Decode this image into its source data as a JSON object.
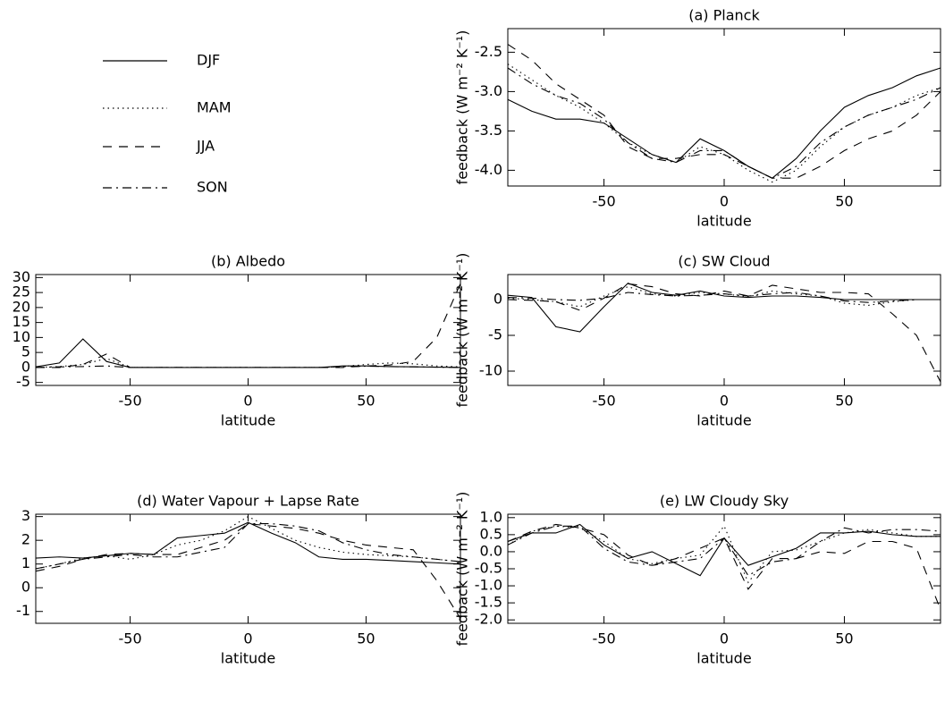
{
  "legend": [
    {
      "name": "DJF",
      "dash": "solid"
    },
    {
      "name": "MAM",
      "dash": "dotted"
    },
    {
      "name": "JJA",
      "dash": "dashed"
    },
    {
      "name": "SON",
      "dash": "dashdot"
    }
  ],
  "chart_data": [
    {
      "type": "line",
      "title": "(a) Planck",
      "xlabel": "latitude",
      "ylabel": "feedback (W m⁻² K⁻¹)",
      "xlim": [
        -90,
        90
      ],
      "xticks": [
        -50,
        0,
        50
      ],
      "ylim": [
        -4.2,
        -2.2
      ],
      "yticks": [
        -2.5,
        {
          "value": -3,
          "label": "-3.0"
        },
        -3.5,
        {
          "value": -4,
          "label": "-4.0"
        }
      ],
      "x": [
        -90,
        -80,
        -70,
        -60,
        -50,
        -40,
        -30,
        -20,
        -10,
        0,
        10,
        20,
        30,
        40,
        50,
        60,
        70,
        80,
        90
      ],
      "series": [
        {
          "name": "DJF",
          "values": [
            -3.1,
            -3.25,
            -3.35,
            -3.35,
            -3.4,
            -3.6,
            -3.8,
            -3.9,
            -3.6,
            -3.75,
            -3.95,
            -4.1,
            -3.85,
            -3.5,
            -3.2,
            -3.05,
            -2.95,
            -2.8,
            -2.7
          ]
        },
        {
          "name": "MAM",
          "values": [
            -2.65,
            -2.85,
            -3.05,
            -3.2,
            -3.4,
            -3.65,
            -3.8,
            -3.9,
            -3.7,
            -3.8,
            -4.0,
            -4.15,
            -4.0,
            -3.7,
            -3.45,
            -3.3,
            -3.2,
            -3.05,
            -2.95
          ]
        },
        {
          "name": "JJA",
          "values": [
            -2.4,
            -2.6,
            -2.9,
            -3.1,
            -3.3,
            -3.7,
            -3.85,
            -3.85,
            -3.8,
            -3.8,
            -3.95,
            -4.1,
            -4.1,
            -3.95,
            -3.75,
            -3.6,
            -3.5,
            -3.3,
            -3.0
          ]
        },
        {
          "name": "SON",
          "values": [
            -2.7,
            -2.9,
            -3.05,
            -3.15,
            -3.35,
            -3.65,
            -3.85,
            -3.9,
            -3.75,
            -3.75,
            -3.95,
            -4.1,
            -3.95,
            -3.65,
            -3.45,
            -3.3,
            -3.2,
            -3.1,
            -2.95
          ]
        }
      ]
    },
    {
      "type": "line",
      "title": "(b) Albedo",
      "xlabel": "latitude",
      "ylabel": "feedback (W m⁻² K⁻¹)",
      "xlim": [
        -90,
        90
      ],
      "xticks": [
        -50,
        0,
        50
      ],
      "ylim": [
        -6,
        31
      ],
      "yticks": [
        -5,
        0,
        5,
        10,
        15,
        20,
        25,
        30
      ],
      "x": [
        -90,
        -80,
        -70,
        -60,
        -50,
        -40,
        -30,
        -20,
        -10,
        0,
        10,
        20,
        30,
        40,
        50,
        60,
        70,
        80,
        90
      ],
      "series": [
        {
          "name": "DJF",
          "values": [
            0.2,
            1.5,
            9.5,
            2,
            0,
            0,
            0,
            0,
            0,
            0,
            0,
            0,
            0,
            0.5,
            0.5,
            0.3,
            0.2,
            0.1,
            0
          ]
        },
        {
          "name": "MAM",
          "values": [
            0,
            0.3,
            1,
            3,
            0,
            0,
            0,
            0,
            0,
            0,
            0,
            0,
            0,
            0.3,
            1,
            1.5,
            1.2,
            0.5,
            0.2
          ]
        },
        {
          "name": "JJA",
          "values": [
            0,
            0,
            1,
            4.5,
            0,
            0,
            0,
            0,
            0,
            0,
            0,
            0,
            0,
            0,
            0.5,
            0.8,
            2,
            10,
            28
          ]
        },
        {
          "name": "SON",
          "values": [
            0,
            0.2,
            0.3,
            0.5,
            0,
            0,
            0,
            0,
            0,
            0,
            0,
            0,
            0,
            0.3,
            0.4,
            0.3,
            0.2,
            0.1,
            0
          ]
        }
      ]
    },
    {
      "type": "line",
      "title": "(c) SW Cloud",
      "xlabel": "latitude",
      "ylabel": "feedback (W m⁻² K⁻¹)",
      "xlim": [
        -90,
        90
      ],
      "xticks": [
        -50,
        0,
        50
      ],
      "ylim": [
        -12,
        3.5
      ],
      "yticks": [
        -10,
        -5,
        0
      ],
      "x": [
        -90,
        -80,
        -70,
        -60,
        -50,
        -40,
        -30,
        -20,
        -10,
        0,
        10,
        20,
        30,
        40,
        50,
        60,
        70,
        80,
        90
      ],
      "series": [
        {
          "name": "DJF",
          "values": [
            0.6,
            0.3,
            -3.8,
            -4.5,
            -1,
            2.3,
            1,
            0.6,
            1.2,
            0.5,
            0.3,
            0.5,
            0.5,
            0.3,
            0,
            0,
            0,
            0,
            0
          ]
        },
        {
          "name": "MAM",
          "values": [
            0.2,
            0,
            -0.3,
            -1,
            0.5,
            1.8,
            0.8,
            0.5,
            1,
            0.8,
            0.4,
            1.2,
            0.8,
            0.5,
            -0.5,
            -0.8,
            -0.3,
            0,
            0
          ]
        },
        {
          "name": "JJA",
          "values": [
            0,
            -0.1,
            -0.3,
            -1.5,
            0.2,
            2.2,
            1.8,
            0.8,
            0.5,
            1.2,
            0.5,
            2,
            1.5,
            1,
            1,
            0.8,
            -2,
            -5,
            -11.5
          ]
        },
        {
          "name": "SON",
          "values": [
            0.3,
            0.2,
            0,
            -0.1,
            0.2,
            1,
            0.7,
            0.5,
            0.6,
            0.8,
            0.5,
            0.8,
            1,
            0.5,
            -0.2,
            -0.4,
            -0.2,
            0,
            0
          ]
        }
      ]
    },
    {
      "type": "line",
      "title": "(d) Water Vapour + Lapse Rate",
      "xlabel": "latitude",
      "ylabel": "feedback (W m⁻² K⁻¹)",
      "xlim": [
        -90,
        90
      ],
      "xticks": [
        -50,
        0,
        50
      ],
      "ylim": [
        -1.5,
        3.1
      ],
      "yticks": [
        -1,
        0,
        1,
        2,
        3
      ],
      "x": [
        -90,
        -80,
        -70,
        -60,
        -50,
        -40,
        -30,
        -20,
        -10,
        0,
        10,
        20,
        30,
        40,
        50,
        60,
        70,
        80,
        90
      ],
      "series": [
        {
          "name": "DJF",
          "values": [
            1.25,
            1.3,
            1.25,
            1.35,
            1.45,
            1.4,
            2.1,
            2.2,
            2.3,
            2.75,
            2.3,
            1.9,
            1.3,
            1.2,
            1.2,
            1.15,
            1.1,
            1.05,
            1.0
          ]
        },
        {
          "name": "MAM",
          "values": [
            0.8,
            1.0,
            1.25,
            1.35,
            1.2,
            1.4,
            1.8,
            2.0,
            2.4,
            3.0,
            2.5,
            2.0,
            1.7,
            1.5,
            1.4,
            1.35,
            1.3,
            1.2,
            1.1
          ]
        },
        {
          "name": "JJA",
          "values": [
            0.7,
            0.9,
            1.2,
            1.4,
            1.45,
            1.4,
            1.4,
            1.7,
            2.0,
            2.7,
            2.6,
            2.5,
            2.3,
            2.0,
            1.8,
            1.7,
            1.6,
            0.3,
            -1.3
          ]
        },
        {
          "name": "SON",
          "values": [
            0.8,
            1.0,
            1.2,
            1.3,
            1.4,
            1.3,
            1.3,
            1.5,
            1.7,
            2.7,
            2.7,
            2.6,
            2.4,
            1.9,
            1.6,
            1.4,
            1.3,
            1.2,
            1.1
          ]
        }
      ]
    },
    {
      "type": "line",
      "title": "(e) LW Cloudy Sky",
      "xlabel": "latitude",
      "ylabel": "feedback (W m⁻² K⁻¹)",
      "xlim": [
        -90,
        90
      ],
      "xticks": [
        -50,
        0,
        50
      ],
      "ylim": [
        -2.1,
        1.1
      ],
      "yticks": [
        {
          "value": -2,
          "label": "-2.0"
        },
        -1.5,
        {
          "value": -1,
          "label": "-1.0"
        },
        -0.5,
        {
          "value": 0,
          "label": "0.0"
        },
        0.5,
        {
          "value": 1,
          "label": "1.0"
        }
      ],
      "x": [
        -90,
        -80,
        -70,
        -60,
        -50,
        -40,
        -30,
        -20,
        -10,
        0,
        10,
        20,
        30,
        40,
        50,
        60,
        70,
        80,
        90
      ],
      "series": [
        {
          "name": "DJF",
          "values": [
            0.3,
            0.55,
            0.55,
            0.8,
            0.2,
            -0.2,
            0,
            -0.35,
            -0.7,
            0.4,
            -0.4,
            -0.15,
            0.1,
            0.55,
            0.55,
            0.6,
            0.5,
            0.45,
            0.45
          ]
        },
        {
          "name": "MAM",
          "values": [
            0.2,
            0.6,
            0.75,
            0.7,
            0.3,
            -0.2,
            -0.35,
            -0.2,
            -0.1,
            0.75,
            -0.9,
            0,
            0.05,
            0.3,
            0.55,
            0.65,
            0.55,
            0.45,
            0.45
          ]
        },
        {
          "name": "JJA",
          "values": [
            0.3,
            0.6,
            0.8,
            0.7,
            0.5,
            -0.1,
            -0.4,
            -0.2,
            0.1,
            0.4,
            -1.1,
            -0.2,
            -0.2,
            0,
            -0.05,
            0.3,
            0.3,
            0.1,
            -1.7
          ]
        },
        {
          "name": "SON",
          "values": [
            0.2,
            0.55,
            0.75,
            0.75,
            0.1,
            -0.3,
            -0.4,
            -0.3,
            -0.2,
            0.4,
            -0.7,
            -0.3,
            -0.2,
            0.3,
            0.7,
            0.55,
            0.65,
            0.65,
            0.6
          ]
        }
      ]
    }
  ]
}
